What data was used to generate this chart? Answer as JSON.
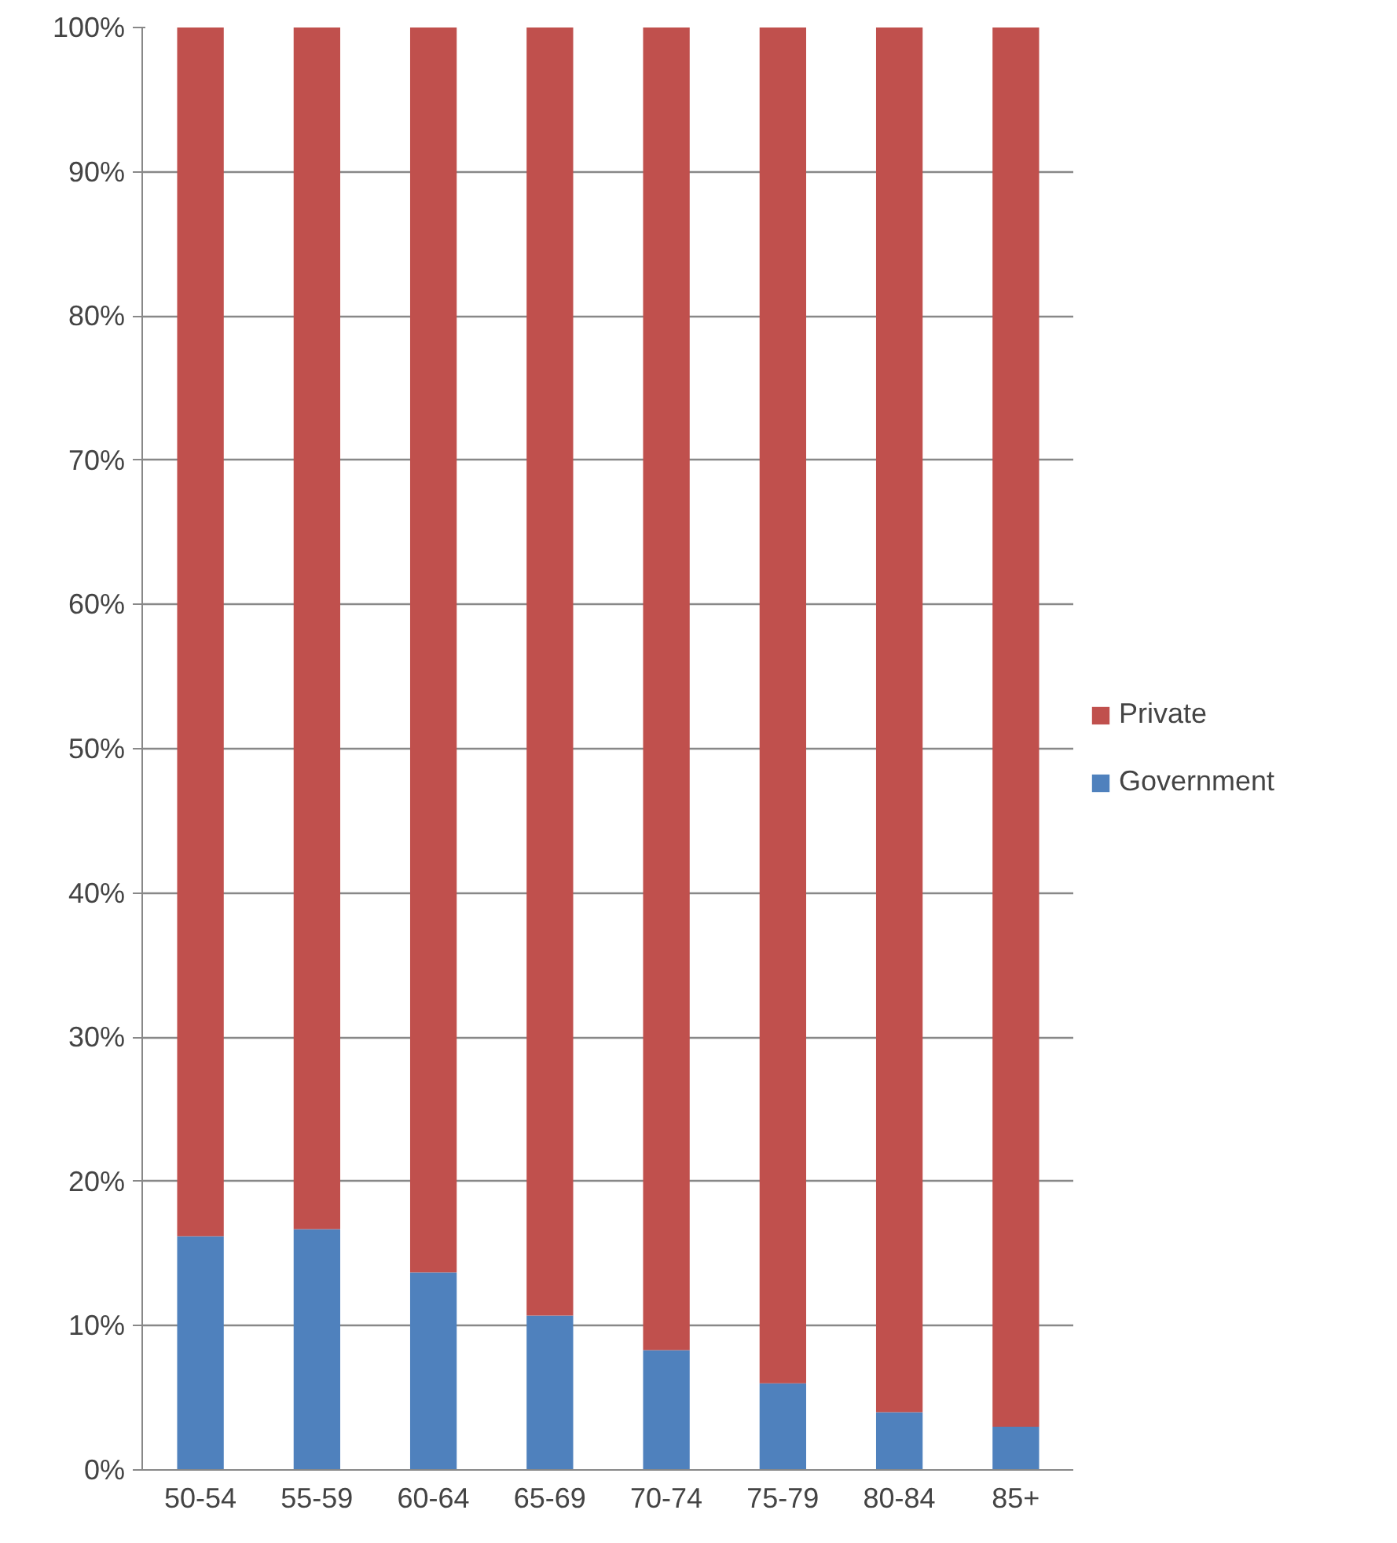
{
  "chart_data": {
    "type": "bar",
    "stacked": true,
    "categories": [
      "50-54",
      "55-59",
      "60-64",
      "65-69",
      "70-74",
      "75-79",
      "80-84",
      "85+"
    ],
    "series": [
      {
        "name": "Government",
        "color": "#4f81bd",
        "values": [
          16.2,
          16.7,
          13.7,
          10.7,
          8.3,
          6.0,
          4.0,
          3.0
        ]
      },
      {
        "name": "Private",
        "color": "#c0504d",
        "values": [
          83.8,
          83.3,
          86.3,
          89.3,
          91.7,
          94.0,
          96.0,
          97.0
        ]
      }
    ],
    "ylim": [
      0,
      100
    ],
    "yticks": [
      {
        "value": 0,
        "label": "0%"
      },
      {
        "value": 10,
        "label": "10%"
      },
      {
        "value": 20,
        "label": "20%"
      },
      {
        "value": 30,
        "label": "30%"
      },
      {
        "value": 40,
        "label": "40%"
      },
      {
        "value": 50,
        "label": "50%"
      },
      {
        "value": 60,
        "label": "60%"
      },
      {
        "value": 70,
        "label": "70%"
      },
      {
        "value": 80,
        "label": "80%"
      },
      {
        "value": 90,
        "label": "90%"
      },
      {
        "value": 100,
        "label": "100%"
      }
    ],
    "grid": "y",
    "legend": "right"
  }
}
